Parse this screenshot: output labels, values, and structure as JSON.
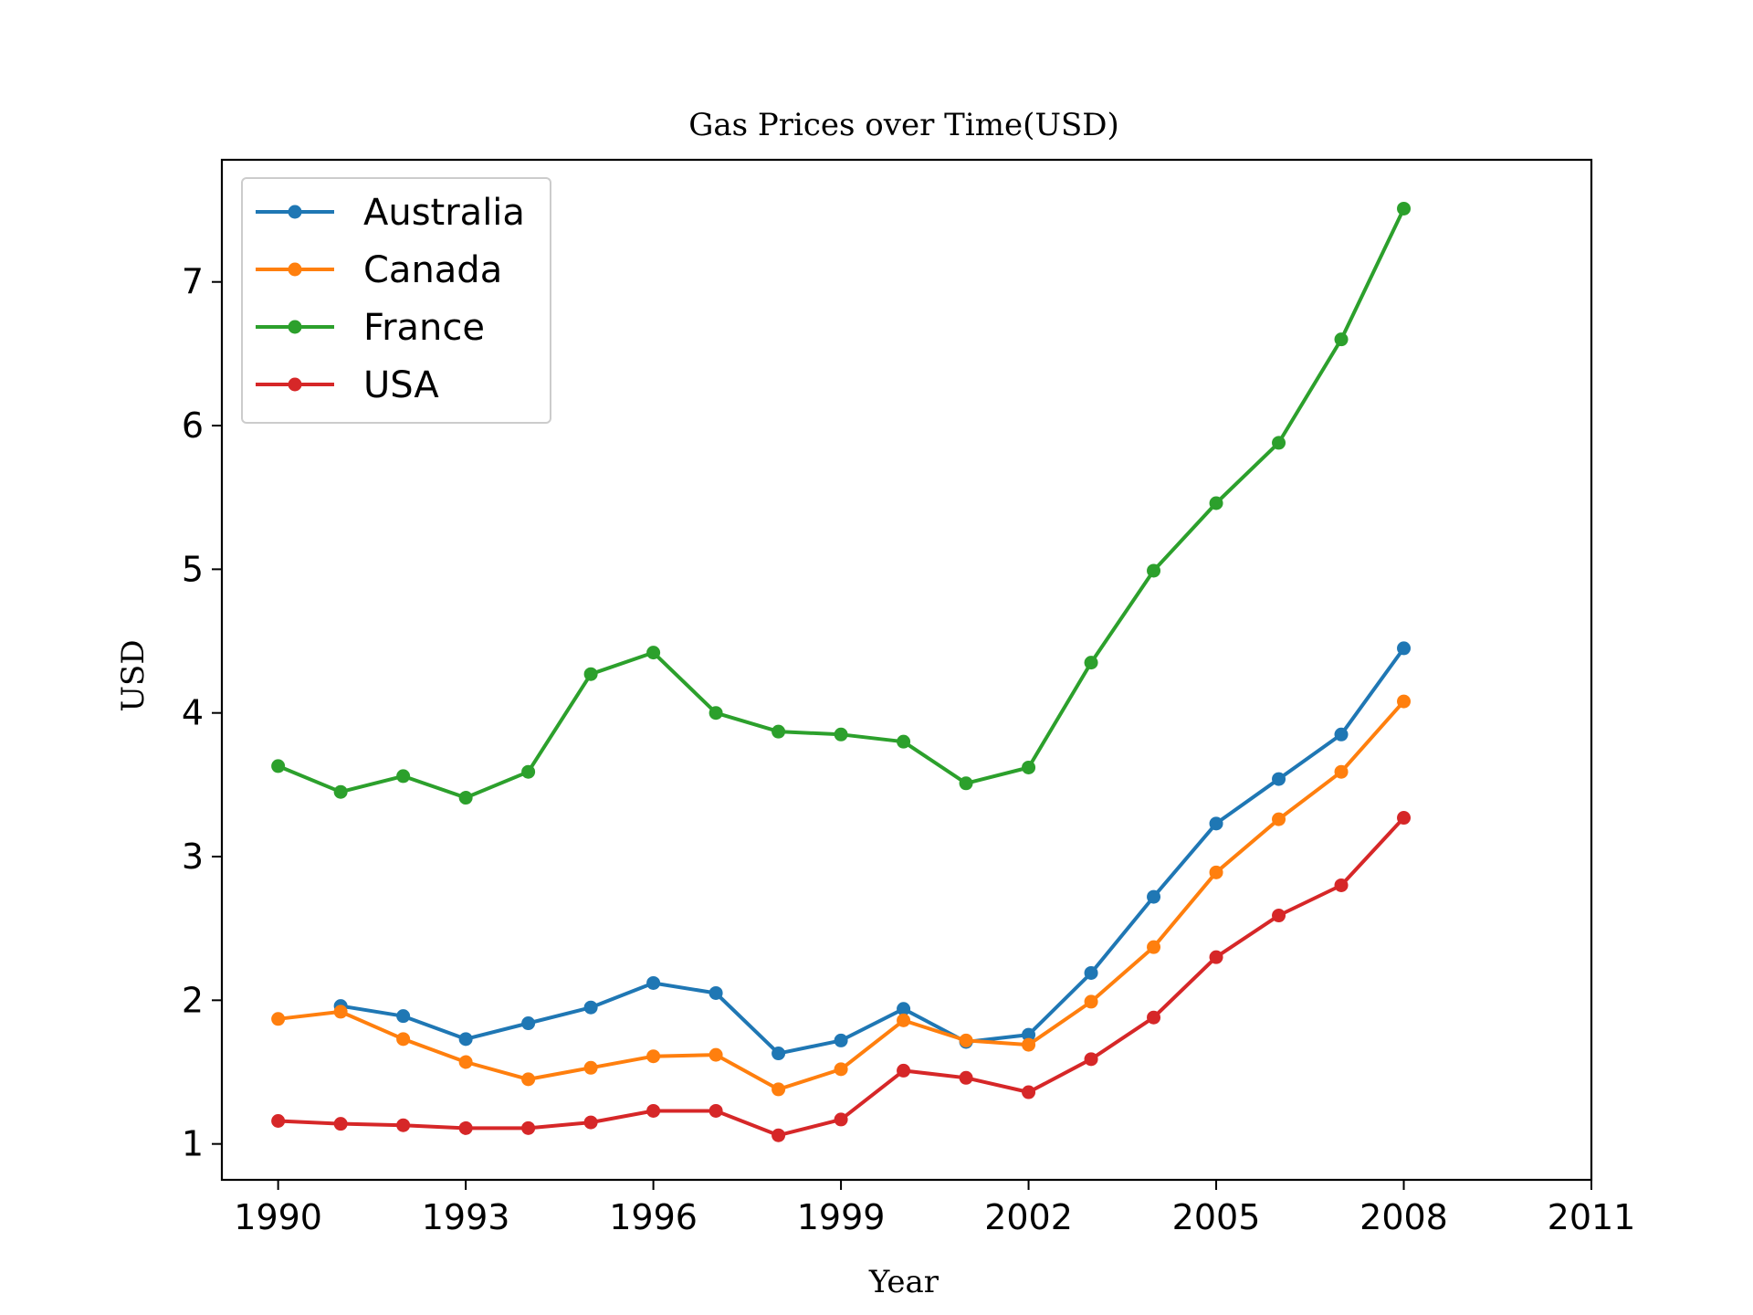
{
  "chart_data": {
    "type": "line",
    "title": "Gas Prices over Time(USD)",
    "xlabel": "Year",
    "ylabel": "USD",
    "x": [
      1990,
      1991,
      1992,
      1993,
      1994,
      1995,
      1996,
      1997,
      1998,
      1999,
      2000,
      2001,
      2002,
      2003,
      2004,
      2005,
      2006,
      2007,
      2008
    ],
    "xlim": [
      1989.1,
      2011
    ],
    "ylim": [
      0.75,
      7.85
    ],
    "x_ticks": [
      1990,
      1993,
      1996,
      1999,
      2002,
      2005,
      2008,
      2011
    ],
    "y_ticks": [
      1,
      2,
      3,
      4,
      5,
      6,
      7
    ],
    "grid": false,
    "legend_position": "top-left",
    "marker": "circle",
    "series": [
      {
        "name": "Australia",
        "color": "#1f77b4",
        "x": [
          1991,
          1992,
          1993,
          1994,
          1995,
          1996,
          1997,
          1998,
          1999,
          2000,
          2001,
          2002,
          2003,
          2004,
          2005,
          2006,
          2007,
          2008
        ],
        "values": [
          1.96,
          1.89,
          1.73,
          1.84,
          1.95,
          2.12,
          2.05,
          1.63,
          1.72,
          1.94,
          1.71,
          1.76,
          2.19,
          2.72,
          3.23,
          3.54,
          3.85,
          4.45
        ]
      },
      {
        "name": "Canada",
        "color": "#ff7f0e",
        "x": [
          1990,
          1991,
          1992,
          1993,
          1994,
          1995,
          1996,
          1997,
          1998,
          1999,
          2000,
          2001,
          2002,
          2003,
          2004,
          2005,
          2006,
          2007,
          2008
        ],
        "values": [
          1.87,
          1.92,
          1.73,
          1.57,
          1.45,
          1.53,
          1.61,
          1.62,
          1.38,
          1.52,
          1.86,
          1.72,
          1.69,
          1.99,
          2.37,
          2.89,
          3.26,
          3.59,
          4.08
        ]
      },
      {
        "name": "France",
        "color": "#2ca02c",
        "x": [
          1990,
          1991,
          1992,
          1993,
          1994,
          1995,
          1996,
          1997,
          1998,
          1999,
          2000,
          2001,
          2002,
          2003,
          2004,
          2005,
          2006,
          2007,
          2008
        ],
        "values": [
          3.63,
          3.45,
          3.56,
          3.41,
          3.59,
          4.27,
          4.42,
          4.0,
          3.87,
          3.85,
          3.8,
          3.51,
          3.62,
          4.35,
          4.99,
          5.46,
          5.88,
          6.6,
          7.51
        ]
      },
      {
        "name": "USA",
        "color": "#d62728",
        "x": [
          1990,
          1991,
          1992,
          1993,
          1994,
          1995,
          1996,
          1997,
          1998,
          1999,
          2000,
          2001,
          2002,
          2003,
          2004,
          2005,
          2006,
          2007,
          2008
        ],
        "values": [
          1.16,
          1.14,
          1.13,
          1.11,
          1.11,
          1.15,
          1.23,
          1.23,
          1.06,
          1.17,
          1.51,
          1.46,
          1.36,
          1.59,
          1.88,
          2.3,
          2.59,
          2.8,
          3.27
        ]
      }
    ]
  }
}
